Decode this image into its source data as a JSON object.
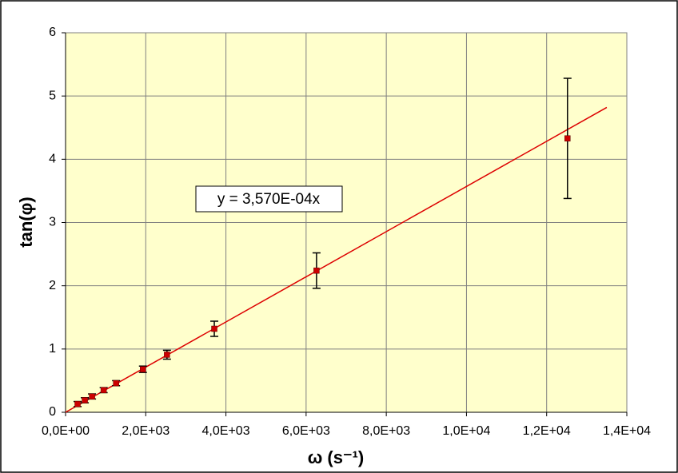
{
  "chart_data": {
    "type": "scatter",
    "xlabel": "ω  (s⁻¹)",
    "ylabel": "tan(φ)",
    "x": [
      300,
      480,
      660,
      950,
      1260,
      1930,
      2530,
      3710,
      6260,
      12520
    ],
    "series": [
      {
        "color": "#cc0000",
        "values": [
          0.13,
          0.19,
          0.25,
          0.35,
          0.46,
          0.68,
          0.91,
          1.32,
          2.24,
          4.33
        ],
        "errors": [
          0.04,
          0.04,
          0.04,
          0.04,
          0.04,
          0.05,
          0.07,
          0.12,
          0.28,
          0.95
        ]
      }
    ],
    "trendline": {
      "slope": 0.000357,
      "x": [
        0,
        13500
      ],
      "color": "#dd0000",
      "label": "y = 3,570E-04x"
    },
    "xlim": [
      0,
      14000
    ],
    "xticks": [
      {
        "value": 0,
        "label": "0,0E+00"
      },
      {
        "value": 2000,
        "label": "2,0E+03"
      },
      {
        "value": 4000,
        "label": "4,0E+03"
      },
      {
        "value": 6000,
        "label": "6,0E+03"
      },
      {
        "value": 8000,
        "label": "8,0E+03"
      },
      {
        "value": 10000,
        "label": "1,0E+04"
      },
      {
        "value": 12000,
        "label": "1,2E+04"
      },
      {
        "value": 14000,
        "label": "1,4E+04"
      }
    ],
    "ylim": [
      0,
      6
    ],
    "yticks": [
      0,
      1,
      2,
      3,
      4,
      5,
      6
    ],
    "grid": true,
    "background": "#ffffcc"
  }
}
